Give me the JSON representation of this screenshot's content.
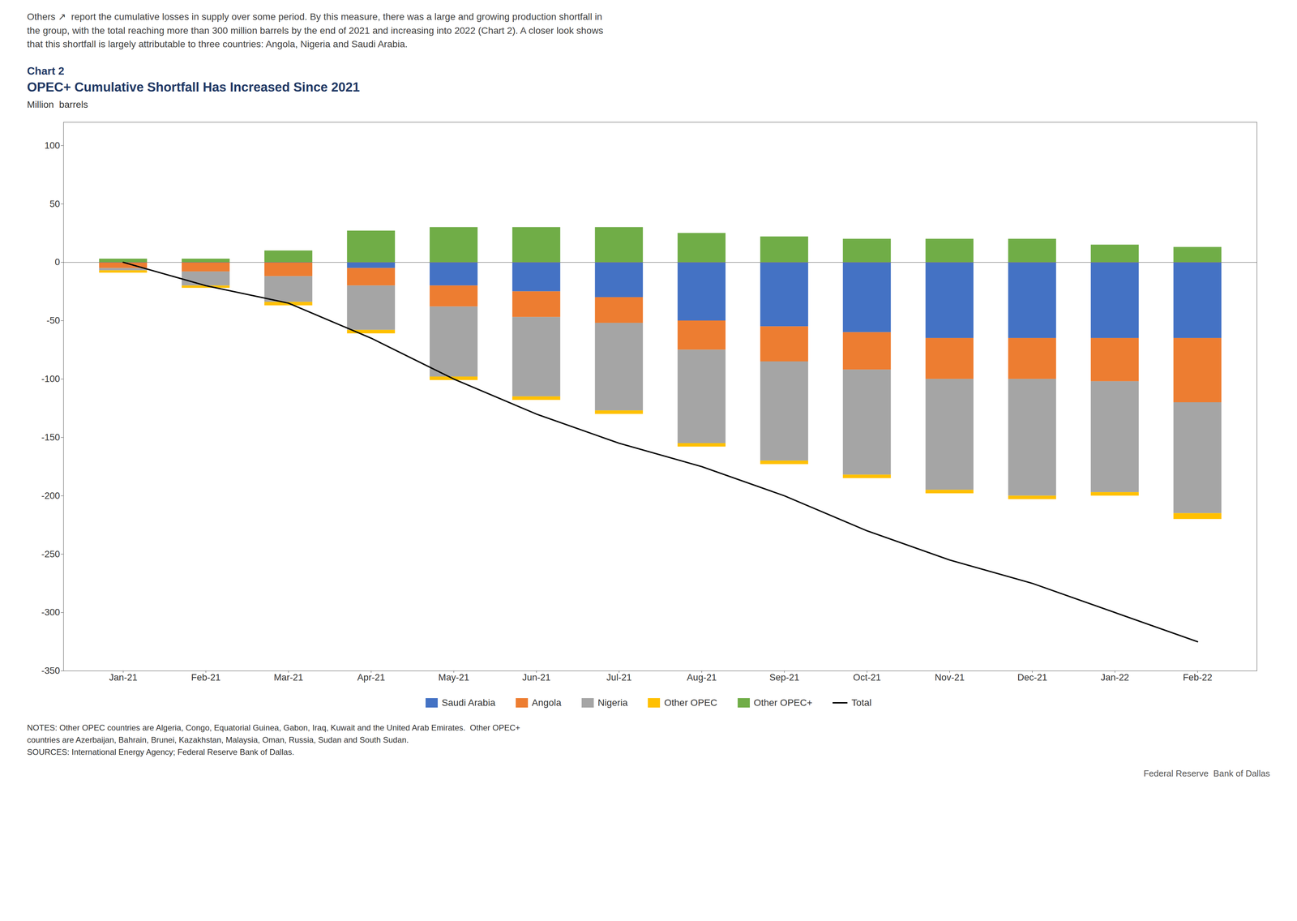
{
  "chart_data": {
    "type": "bar",
    "stacked": true,
    "title": "Chart 2",
    "subtitle": "OPEC+ Cumulative Shortfall Has Increased Since 2021",
    "ylabel": "Million  barrels",
    "annotations": [
      "Others ↗  report the cumulative losses in supply over some period. By this measure, there was a large and growing production shortfall in",
      "the group, with the total reaching more than 300 million barrels by the end of 2021 and increasing into 2022 (Chart 2). A closer look shows",
      "that this shortfall is largely attributable to three countries: Angola, Nigeria and Saudi Arabia.",
      "NOTES: Other OPEC countries are Algeria, Congo, Equatorial Guinea, Gabon, Iraq, Kuwait and the United Arab Emirates.  Other OPEC+\ncountries are Azerbaijan, Bahrain, Brunei, Kazakhstan, Malaysia, Oman, Russia, Sudan and South Sudan.\nSOURCES: International Energy Agency; Federal Reserve Bank of Dallas.",
      "Federal Reserve  Bank of Dallas"
    ],
    "categories": [
      "Jan-21",
      "Feb-21",
      "Mar-21",
      "Apr-21",
      "May-21",
      "Jun-21",
      "Jul-21",
      "Aug-21",
      "Sep-21",
      "Oct-21",
      "Nov-21",
      "Dec-21",
      "Jan-22",
      "Feb-22"
    ],
    "series": [
      {
        "name": "Saudi Arabia",
        "color": "#4472C4",
        "values": [
          0,
          0,
          0,
          -5,
          -20,
          -25,
          -30,
          -50,
          -55,
          -60,
          -65,
          -65,
          -65,
          -65
        ]
      },
      {
        "name": "Angola",
        "color": "#ED7D31",
        "values": [
          -5,
          -8,
          -12,
          -15,
          -18,
          -22,
          -22,
          -25,
          -30,
          -32,
          -35,
          -35,
          -37,
          -55
        ]
      },
      {
        "name": "Nigeria",
        "color": "#A5A5A5",
        "values": [
          -2,
          -12,
          -22,
          -38,
          -60,
          -68,
          -75,
          -80,
          -85,
          -90,
          -95,
          -100,
          -95,
          -95
        ]
      },
      {
        "name": "Other OPEC",
        "color": "#FFC000",
        "values": [
          -2,
          -2,
          -3,
          -3,
          -3,
          -3,
          -3,
          -3,
          -3,
          -3,
          -3,
          -3,
          -3,
          -5
        ]
      },
      {
        "name": "Other OPEC+",
        "color": "#70AD47",
        "values": [
          3,
          3,
          10,
          27,
          30,
          30,
          30,
          25,
          22,
          20,
          20,
          20,
          15,
          13
        ]
      },
      {
        "name": "Total",
        "type": "line",
        "color": "#000000",
        "values": [
          0,
          -20,
          -35,
          -65,
          -100,
          -130,
          -155,
          -175,
          -200,
          -230,
          -255,
          -275,
          -300,
          -325
        ]
      }
    ],
    "ylim": [
      -350,
      120
    ],
    "yticks": [
      100,
      50,
      0,
      -50,
      -100,
      -150,
      -200,
      -250,
      -300,
      -350
    ],
    "grid": false,
    "legend": "bottom"
  }
}
